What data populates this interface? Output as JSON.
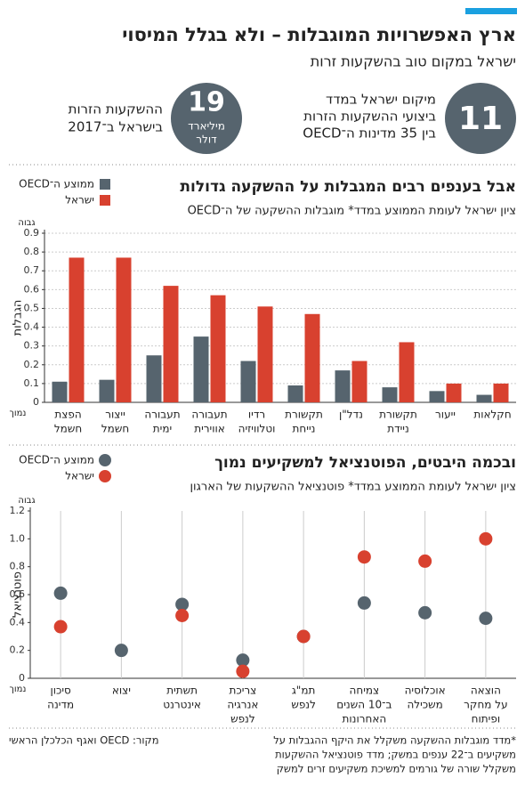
{
  "header": {
    "title": "ארץ האפשרויות המוגבלות – ולא בגלל המיסוי",
    "subtitle": "ישראל במקום טוב בהשקעות זרות"
  },
  "stats": [
    {
      "number": 11,
      "lines": [
        "מיקום ישראל במדד",
        "ביצועי ההשקעות הזרות",
        "בין 35 מדינות ה־OECD"
      ]
    },
    {
      "number": 19,
      "unit": [
        "מיליארד",
        "דולר"
      ],
      "lines": [
        "ההשקעות הזרות",
        "בישראל ב־2017"
      ]
    }
  ],
  "chart_data": [
    {
      "type": "bar",
      "title": "אבל בענפים רבים המגבלות על ההשקעה גדולות",
      "subtitle": "ציון ישראל לעומת הממוצע במדד* מוגבלות ההשקעה של ה־OECD",
      "y_label": "הגבלות",
      "y_high": "גבוה",
      "y_low": "נמוך",
      "categories": [
        [
          "הפצת",
          "חשמל"
        ],
        [
          "ייצור",
          "חשמל"
        ],
        [
          "תעבורה",
          "ימית"
        ],
        [
          "תעבורה",
          "אווירית"
        ],
        [
          "רדיו",
          "וטלוויזיה"
        ],
        [
          "תקשורת",
          "נייחת"
        ],
        [
          "נדל\"ן"
        ],
        [
          "תקשורת",
          "ניידת"
        ],
        [
          "ייעור"
        ],
        [
          "חקלאות"
        ]
      ],
      "series": [
        {
          "name": "ממוצע ה־OECD",
          "color": "#56646e",
          "values": [
            0.11,
            0.12,
            0.25,
            0.35,
            0.22,
            0.09,
            0.17,
            0.08,
            0.06,
            0.04
          ]
        },
        {
          "name": "ישראל",
          "color": "#d8412f",
          "values": [
            0.77,
            0.77,
            0.62,
            0.57,
            0.51,
            0.47,
            0.22,
            0.32,
            0.1,
            0.1
          ]
        }
      ],
      "ylim": [
        0,
        0.9
      ],
      "yticks": [
        0,
        0.1,
        0.2,
        0.3,
        0.4,
        0.5,
        0.6,
        0.7,
        0.8,
        0.9
      ],
      "grid": true,
      "legend": "top-left"
    },
    {
      "type": "dot",
      "title": "ובכמה היבטים, הפוטנציאל למשקיעים נמוך",
      "subtitle": "ציון ישראל לעומת הממוצע במדד* פוטנציאל ההשקעות של הארגון",
      "y_label": "פוטנציאל",
      "y_high": "גבוה",
      "y_low": "נמוך",
      "categories": [
        [
          "סיכון",
          "מדינה"
        ],
        [
          "יצוא"
        ],
        [
          "תשתית",
          "אינטרנט"
        ],
        [
          "צריכת",
          "אנרגיה",
          "לנפש"
        ],
        [
          "תמ\"ג",
          "לנפש"
        ],
        [
          "צמיחה",
          "ב־10 השנים",
          "האחרונות"
        ],
        [
          "אוכלוסיה",
          "משכילה"
        ],
        [
          "הוצאה",
          "על מחקר",
          "ופיתוח"
        ]
      ],
      "series": [
        {
          "name": "ממוצע ה־OECD",
          "color": "#56646e",
          "values": [
            0.61,
            0.2,
            0.53,
            0.13,
            0.3,
            0.54,
            0.47,
            0.43
          ]
        },
        {
          "name": "ישראל",
          "color": "#d8412f",
          "values": [
            0.37,
            null,
            0.45,
            0.05,
            0.3,
            0.87,
            0.84,
            1.0
          ]
        }
      ],
      "ylim": [
        0,
        1.2
      ],
      "yticks": [
        0,
        0.2,
        0.4,
        0.6,
        0.8,
        {
          "value": 1,
          "label": "1.0"
        },
        1.2
      ],
      "grid": false,
      "legend": "top-left"
    }
  ],
  "footnote": [
    "*מדד מוגבלות ההשקעה משקלל את היקף ההגבלות על",
    "משקיעים ב־22 ענפים במשק; מדד פוטנציאל ההשקעות",
    "משקלל שורה של גורמים למשיכת משקיעים זרים למשק"
  ],
  "source": "מקור: OECD ואגף הכלכלן הראשי"
}
